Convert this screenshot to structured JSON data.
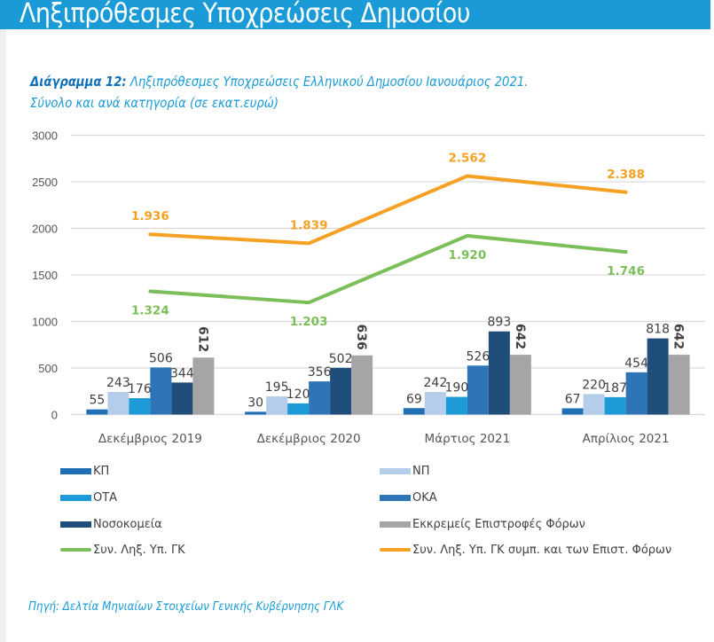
{
  "header": {
    "title": "Ληξιπρόθεσμες Υποχρεώσεις Δημοσίου"
  },
  "caption": {
    "label": "Διάγραμμα 12:",
    "line1": " Ληξιπρόθεσμες Υποχρεώσεις Ελληνικού Δημοσίου Ιανουάριος 2021.",
    "line2": "Σύνολο και ανά κατηγορία (σε εκατ.ευρώ)"
  },
  "source": "Πηγή: Δελτία Μηνιαίων Στοιχείων Γενικής Κυβέρνησης ΓΛΚ",
  "chart_data": {
    "type": "bar",
    "title": "Ληξιπρόθεσμες Υποχρεώσεις Ελληνικού Δημοσίου Ιανουάριος 2021. Σύνολο και ανά κατηγορία (σε εκατ.ευρώ)",
    "xlabel": "",
    "ylabel": "",
    "ylim": [
      0,
      3000
    ],
    "yticks": [
      0,
      500,
      1000,
      1500,
      2000,
      2500,
      3000
    ],
    "grid": true,
    "legend_position": "bottom",
    "categories": [
      "Δεκέμβριος 2019",
      "Δεκέμβριος 2020",
      "Μάρτιος 2021",
      "Απρίλιος 2021"
    ],
    "series": [
      {
        "name": "ΚΠ",
        "kind": "bar",
        "color": "#1f6fb5",
        "values": [
          55,
          30,
          69,
          67
        ],
        "labels": [
          "55",
          "30",
          "69",
          "67"
        ]
      },
      {
        "name": "ΝΠ",
        "kind": "bar",
        "color": "#b4cdea",
        "values": [
          243,
          195,
          242,
          220
        ],
        "labels": [
          "243",
          "195",
          "242",
          "220"
        ]
      },
      {
        "name": "ΟΤΑ",
        "kind": "bar",
        "color": "#1d9ad8",
        "values": [
          176,
          120,
          190,
          187
        ],
        "labels": [
          "176",
          "120",
          "190",
          "187"
        ]
      },
      {
        "name": "ΟΚΑ",
        "kind": "bar",
        "color": "#2e75b8",
        "values": [
          506,
          356,
          526,
          454
        ],
        "labels": [
          "506",
          "356",
          "526",
          "454"
        ]
      },
      {
        "name": "Νοσοκομεία",
        "kind": "bar",
        "color": "#1f4e7a",
        "values": [
          344,
          502,
          893,
          818
        ],
        "labels": [
          "344",
          "502",
          "893",
          "818"
        ]
      },
      {
        "name": "Εκκρεμείς Επιστροφές Φόρων",
        "kind": "bar",
        "color": "#a5a5a8",
        "values": [
          612,
          636,
          642,
          642
        ],
        "labels": [
          "612",
          "636",
          "642",
          "642"
        ],
        "label_rotated": true
      },
      {
        "name": "Συν. Ληξ. Υπ. ΓΚ",
        "kind": "line",
        "color": "#7cbf5a",
        "values": [
          1324,
          1203,
          1920,
          1746
        ],
        "labels": [
          "1.324",
          "1.203",
          "1.920",
          "1.746"
        ]
      },
      {
        "name": "Συν. Ληξ. Υπ.  ΓΚ συμπ.  και των  Επιστ. Φόρων",
        "kind": "line",
        "color": "#f5a124",
        "values": [
          1936,
          1839,
          2562,
          2388
        ],
        "labels": [
          "1.936",
          "1.839",
          "2.562",
          "2.388"
        ]
      }
    ]
  }
}
